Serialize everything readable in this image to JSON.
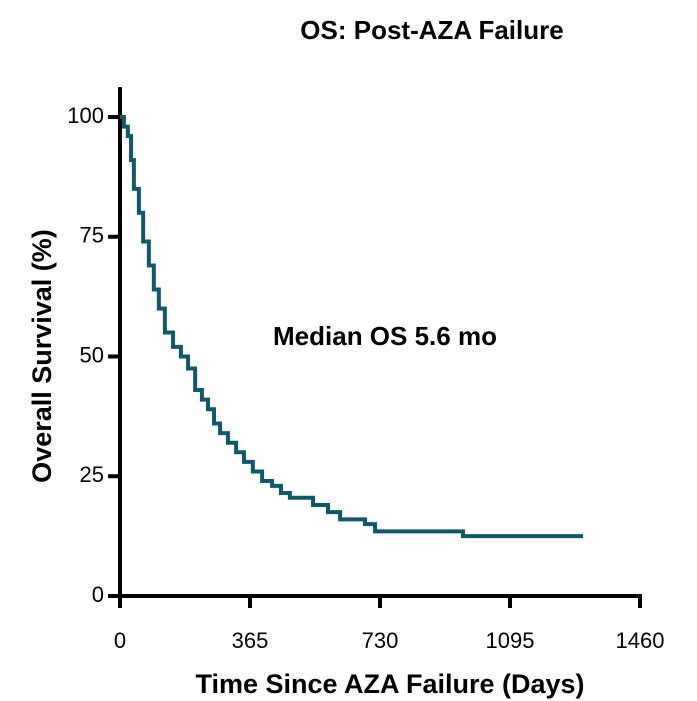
{
  "chart_data": {
    "type": "line",
    "step": true,
    "title": "OS: Post-AZA Failure",
    "x_label": "Time Since AZA Failure (Days)",
    "y_label": "Overall Survival (%)",
    "annotation": "Median OS 5.6 mo",
    "x": [
      0,
      11,
      22,
      31,
      39,
      53,
      65,
      81,
      95,
      109,
      126,
      149,
      171,
      191,
      211,
      230,
      247,
      264,
      281,
      303,
      326,
      348,
      373,
      399,
      427,
      452,
      477,
      542,
      584,
      618,
      688,
      716,
      963,
      1300
    ],
    "series": [
      {
        "color": "#10596b",
        "values": [
          100,
          98,
          96,
          91,
          85,
          80,
          74,
          69,
          64,
          60,
          55,
          52,
          50,
          47.5,
          43,
          41,
          39,
          36,
          34,
          32,
          30,
          28,
          26,
          24,
          23,
          21.5,
          20.5,
          19,
          17.5,
          16,
          15,
          13.5,
          12.5,
          12.5
        ]
      }
    ],
    "xlim": [
      0,
      1460
    ],
    "xticks": [
      0,
      365,
      730,
      1095,
      1460
    ],
    "ylim": [
      0,
      100
    ],
    "yticks": [
      0,
      25,
      50,
      75,
      100
    ]
  }
}
